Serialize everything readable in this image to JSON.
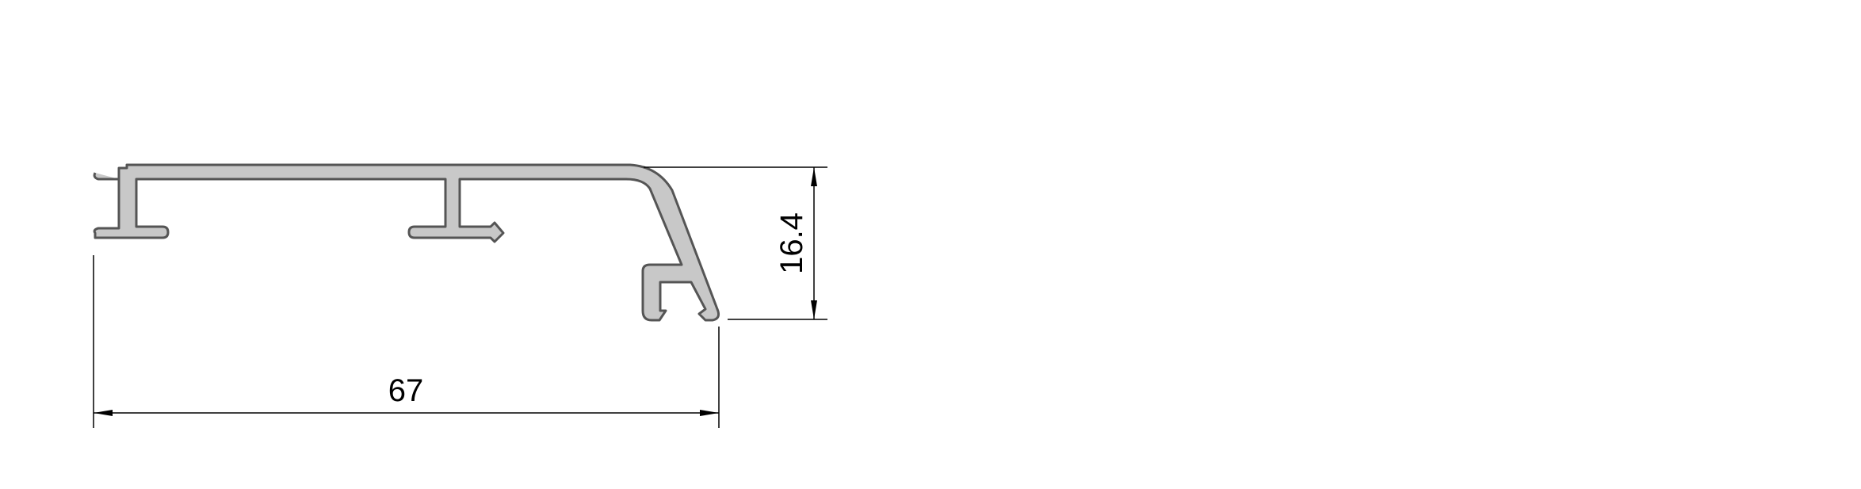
{
  "drawing": {
    "type": "aluminium profile cross-section",
    "profile_fill": "#c8c8c8",
    "outline_color": "#555555",
    "dimension_color": "#000000",
    "dimensions": {
      "width": "67",
      "height": "16.4"
    }
  }
}
